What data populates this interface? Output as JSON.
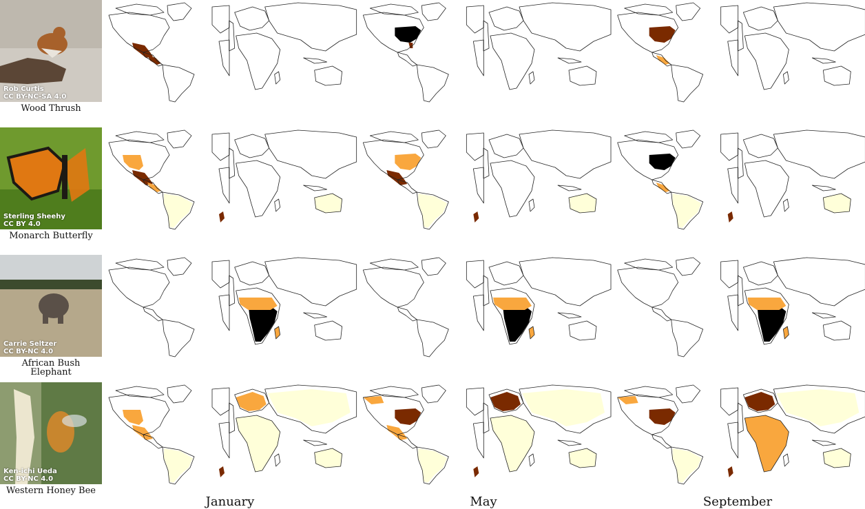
{
  "months": [
    "January",
    "May",
    "September"
  ],
  "species": [
    {
      "name": "Wood Thrush",
      "credit_author": "Rob Curtis",
      "credit_license": "CC BY-NC-SA 4.0",
      "photo_colors": {
        "bg": "#cfcac2",
        "bg2": "#b7b0a5",
        "subject": "#a7612b",
        "accent": "#5b4636"
      }
    },
    {
      "name": "Monarch Butterfly",
      "credit_author": "Sterling Sheehy",
      "credit_license": "CC BY 4.0",
      "photo_colors": {
        "bg": "#6f9a2e",
        "bg2": "#4f7d1d",
        "subject": "#e07812",
        "accent": "#1d1a14"
      }
    },
    {
      "name": "African Bush Elephant",
      "credit_author": "Carrie Seltzer",
      "credit_license": "CC BY-NC 4.0",
      "photo_colors": {
        "bg": "#b5a88b",
        "bg2": "#cfd3d5",
        "subject": "#5a5048",
        "accent": "#3c4b2d"
      }
    },
    {
      "name": "Western Honey Bee",
      "credit_author": "Ken-ichi Ueda",
      "credit_license": "CC BY-NC 4.0",
      "photo_colors": {
        "bg": "#5f7a45",
        "bg2": "#8d9c70",
        "subject": "#c8862e",
        "accent": "#ece6cf"
      }
    }
  ],
  "colors": {
    "map_outline": "#222222",
    "range_low": "#ffffd9",
    "range_mid": "#f9a73e",
    "range_high": "#7a2a00",
    "range_max": "#000000"
  },
  "ranges": [
    [
      [
        {
          "r": "mexico",
          "i": 0.9
        },
        {
          "r": "central_america",
          "i": 0.8
        }
      ],
      [],
      [
        {
          "r": "eastern_us",
          "i": 1.0
        },
        {
          "r": "florida",
          "i": 0.7
        }
      ],
      [],
      [
        {
          "r": "eastern_us",
          "i": 0.8
        },
        {
          "r": "central_america",
          "i": 0.5
        }
      ],
      []
    ],
    [
      [
        {
          "r": "mexico",
          "i": 0.9
        },
        {
          "r": "western_us",
          "i": 0.5
        },
        {
          "r": "south_america",
          "i": 0.12
        },
        {
          "r": "central_america",
          "i": 0.4
        },
        {
          "r": "new_zealand",
          "i": 0.8
        }
      ],
      [
        {
          "r": "australia",
          "i": 0.05
        }
      ],
      [
        {
          "r": "eastern_us",
          "i": 0.6
        },
        {
          "r": "mexico",
          "i": 0.7
        },
        {
          "r": "south_america",
          "i": 0.12
        },
        {
          "r": "new_zealand",
          "i": 0.8
        }
      ],
      [
        {
          "r": "australia",
          "i": 0.05
        }
      ],
      [
        {
          "r": "eastern_us",
          "i": 1.0
        },
        {
          "r": "central_america",
          "i": 0.6
        },
        {
          "r": "south_america",
          "i": 0.12
        },
        {
          "r": "new_zealand",
          "i": 0.8
        }
      ],
      [
        {
          "r": "australia",
          "i": 0.05
        }
      ]
    ],
    [
      [],
      [
        {
          "r": "subsaharan_africa",
          "i": 1.0
        },
        {
          "r": "sahel",
          "i": 0.55
        },
        {
          "r": "madagascar",
          "i": 0.6
        }
      ],
      [],
      [
        {
          "r": "subsaharan_africa",
          "i": 1.0
        },
        {
          "r": "sahel",
          "i": 0.6
        },
        {
          "r": "madagascar",
          "i": 0.6
        }
      ],
      [],
      [
        {
          "r": "subsaharan_africa",
          "i": 1.0
        },
        {
          "r": "sahel",
          "i": 0.55
        },
        {
          "r": "madagascar",
          "i": 0.6
        }
      ]
    ],
    [
      [
        {
          "r": "western_us",
          "i": 0.6
        },
        {
          "r": "mexico",
          "i": 0.5
        },
        {
          "r": "south_america",
          "i": 0.15
        },
        {
          "r": "new_zealand",
          "i": 0.8
        }
      ],
      [
        {
          "r": "europe",
          "i": 0.6
        },
        {
          "r": "africa_all",
          "i": 0.15
        },
        {
          "r": "asia",
          "i": 0.05
        },
        {
          "r": "australia",
          "i": 0.15
        }
      ],
      [
        {
          "r": "eastern_us",
          "i": 0.8
        },
        {
          "r": "mexico",
          "i": 0.6
        },
        {
          "r": "south_america",
          "i": 0.2
        },
        {
          "r": "alaska",
          "i": 0.5
        },
        {
          "r": "new_zealand",
          "i": 0.8
        }
      ],
      [
        {
          "r": "europe",
          "i": 0.9
        },
        {
          "r": "africa_all",
          "i": 0.3
        },
        {
          "r": "asia",
          "i": 0.06
        },
        {
          "r": "australia",
          "i": 0.2
        }
      ],
      [
        {
          "r": "eastern_us",
          "i": 0.85
        },
        {
          "r": "south_america",
          "i": 0.2
        },
        {
          "r": "alaska",
          "i": 0.4
        },
        {
          "r": "new_zealand",
          "i": 0.8
        }
      ],
      [
        {
          "r": "europe",
          "i": 0.9
        },
        {
          "r": "africa_all",
          "i": 0.35
        },
        {
          "r": "asia",
          "i": 0.06
        },
        {
          "r": "australia",
          "i": 0.2
        }
      ]
    ]
  ]
}
